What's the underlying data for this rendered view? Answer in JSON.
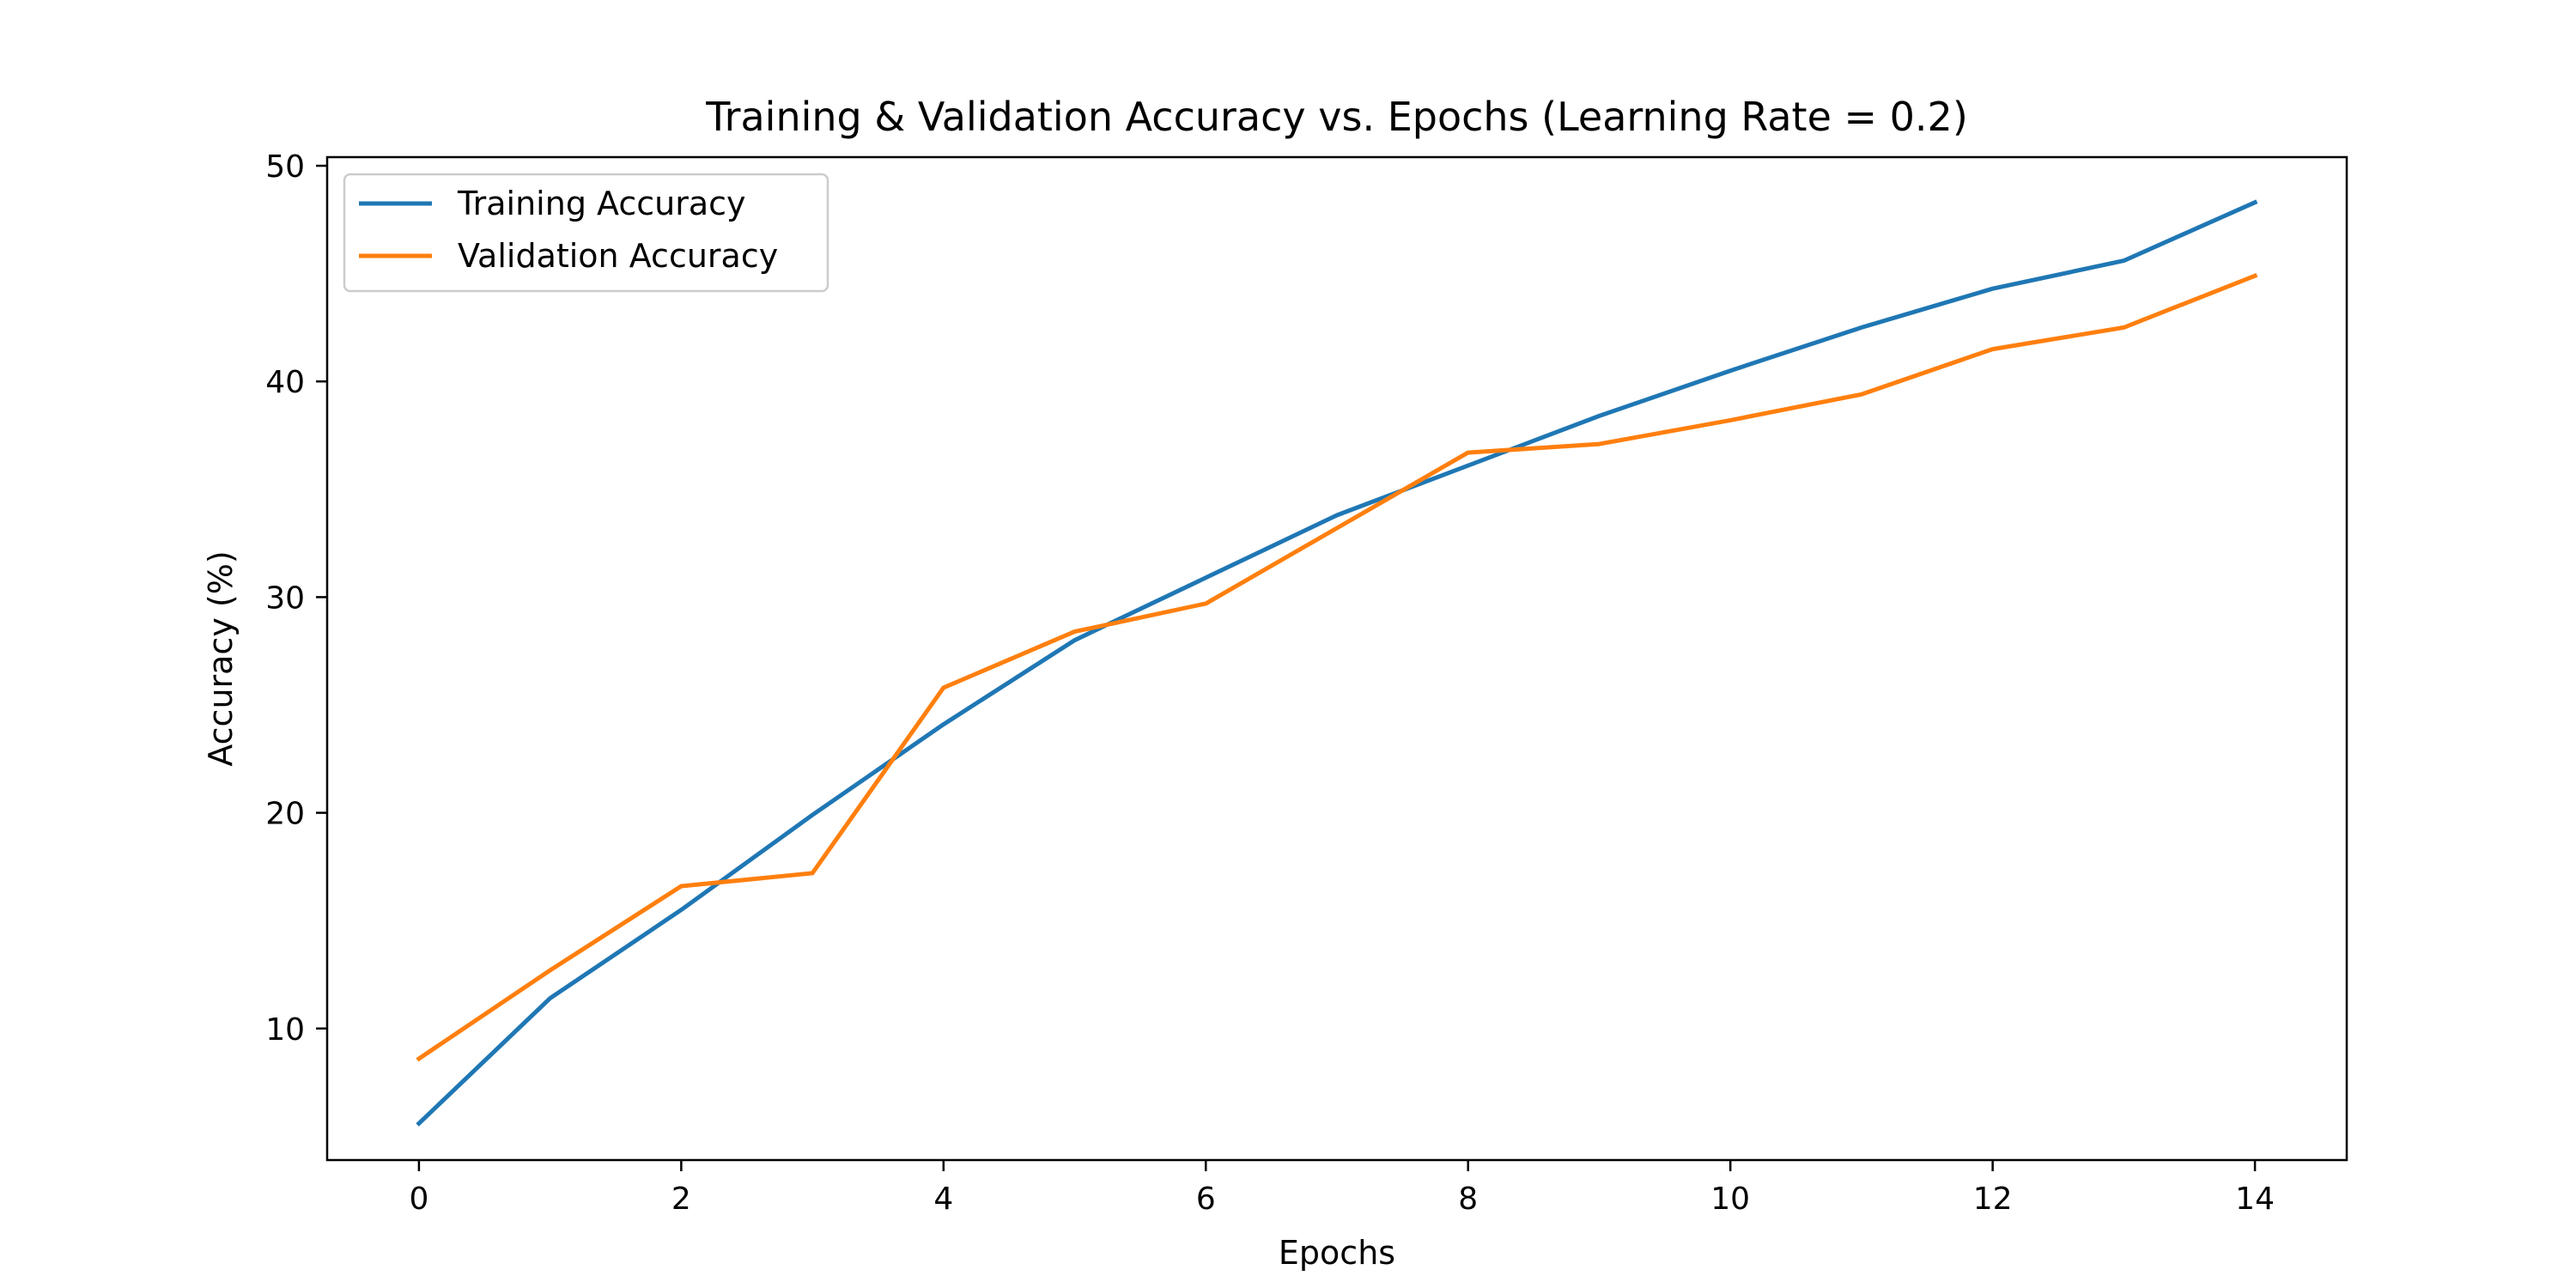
{
  "chart_data": {
    "type": "line",
    "title": "Training & Validation Accuracy vs. Epochs (Learning Rate = 0.2)",
    "xlabel": "Epochs",
    "ylabel": "Accuracy (%)",
    "x": [
      0,
      1,
      2,
      3,
      4,
      5,
      6,
      7,
      8,
      9,
      10,
      11,
      12,
      13,
      14
    ],
    "xlim": [
      -0.7,
      14.7
    ],
    "ylim": [
      3.9,
      50.4
    ],
    "x_ticks": [
      0,
      2,
      4,
      6,
      8,
      10,
      12,
      14
    ],
    "y_ticks": [
      10,
      20,
      30,
      40,
      50
    ],
    "x_tick_labels": [
      "0",
      "2",
      "4",
      "6",
      "8",
      "10",
      "12",
      "14"
    ],
    "y_tick_labels": [
      "10",
      "20",
      "30",
      "40",
      "50"
    ],
    "grid": false,
    "legend_position": "top-left",
    "series": [
      {
        "name": "Training Accuracy",
        "color": "#1f77b4",
        "values": [
          5.6,
          11.4,
          15.5,
          19.9,
          24.1,
          28.0,
          30.9,
          33.8,
          36.1,
          38.4,
          40.5,
          42.5,
          44.3,
          45.6,
          48.3
        ]
      },
      {
        "name": "Validation Accuracy",
        "color": "#ff7f0e",
        "values": [
          8.6,
          12.7,
          16.6,
          17.2,
          25.8,
          28.4,
          29.7,
          33.2,
          36.7,
          37.1,
          38.2,
          39.4,
          41.5,
          42.5,
          44.9
        ]
      }
    ]
  }
}
